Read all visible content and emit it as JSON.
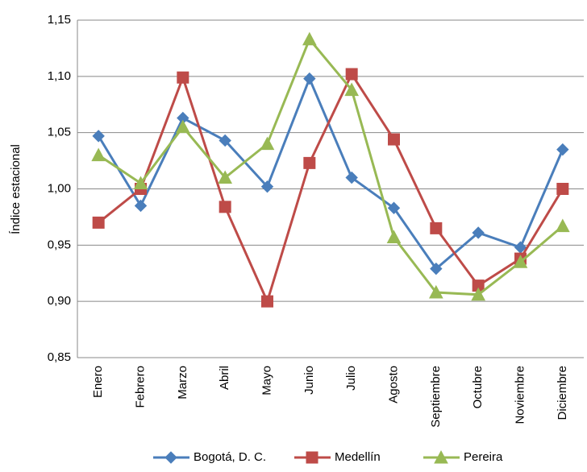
{
  "chart_data": {
    "type": "line",
    "y_label": "Índice estacional",
    "categories": [
      "Enero",
      "Febrero",
      "Marzo",
      "Abril",
      "Mayo",
      "Junio",
      "Julio",
      "Agosto",
      "Septiembre",
      "Octubre",
      "Noviembre",
      "Diciembre"
    ],
    "series": [
      {
        "name": "Bogotá, D. C.",
        "color": "#4a7ebb",
        "marker": "diamond",
        "values": [
          1.047,
          0.985,
          1.063,
          1.043,
          1.002,
          1.098,
          1.01,
          0.983,
          0.929,
          0.961,
          0.948,
          1.035
        ]
      },
      {
        "name": "Medellín",
        "color": "#be4b48",
        "marker": "square",
        "values": [
          0.97,
          1.0,
          1.099,
          0.984,
          0.9,
          1.023,
          1.102,
          1.044,
          0.965,
          0.914,
          0.938,
          1.0
        ]
      },
      {
        "name": "Pereira",
        "color": "#98b954",
        "marker": "triangle",
        "values": [
          1.03,
          1.005,
          1.055,
          1.01,
          1.04,
          1.133,
          1.088,
          0.957,
          0.908,
          0.906,
          0.935,
          0.967
        ]
      }
    ],
    "ylim": [
      0.85,
      1.15
    ],
    "yticks": [
      {
        "value": 0.85,
        "label": "0,85"
      },
      {
        "value": 0.9,
        "label": "0,90"
      },
      {
        "value": 0.95,
        "label": "0,95"
      },
      {
        "value": 1.0,
        "label": "1,00"
      },
      {
        "value": 1.05,
        "label": "1,05"
      },
      {
        "value": 1.1,
        "label": "1,10"
      },
      {
        "value": 1.15,
        "label": "1,15"
      }
    ],
    "grid": true,
    "legend": "bottom"
  }
}
